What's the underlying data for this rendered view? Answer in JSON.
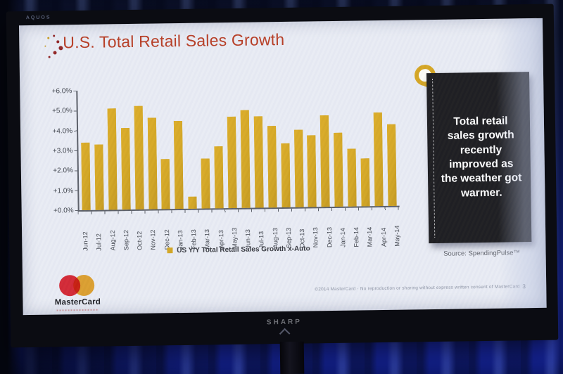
{
  "tv": {
    "top_brand": "AQUOS",
    "bottom_brand": "SHARP"
  },
  "slide": {
    "title": "U.S. Total Retail Sales Growth",
    "callout_text": "Total retail sales growth recently improved as the weather got warmer.",
    "source": "Source: SpendingPulse™",
    "footer_text": "©2014 MasterCard · No reproduction or sharing without express written consent of MasterCard",
    "page_number": "3",
    "logo_text": "MasterCard"
  },
  "chart_data": {
    "type": "bar",
    "title": "U.S. Total Retail Sales Growth",
    "legend": "US Y/Y Total Retail Sales Growth x-Auto",
    "legend_position": "bottom",
    "xlabel": "",
    "ylabel": "",
    "ylim": [
      0,
      6
    ],
    "grid": false,
    "y_ticks_top_down": [
      "+6.0%",
      "+5.0%",
      "+4.0%",
      "+3.0%",
      "+2.0%",
      "+1.0%",
      "+0.0%"
    ],
    "categories": [
      "Jun-12",
      "Jul-12",
      "Aug-12",
      "Sep-12",
      "Oct-12",
      "Nov-12",
      "Dec-12",
      "Jan-13",
      "Feb-13",
      "Mar-13",
      "Apr-13",
      "May-13",
      "Jun-13",
      "Jul-13",
      "Aug-13",
      "Sep-13",
      "Oct-13",
      "Nov-13",
      "Dec-13",
      "Jan-14",
      "Feb-14",
      "Mar-14",
      "Apr-14",
      "May-14"
    ],
    "values": [
      3.4,
      3.3,
      5.1,
      4.1,
      5.2,
      4.6,
      2.5,
      4.4,
      0.6,
      2.5,
      3.1,
      4.6,
      4.9,
      4.6,
      4.1,
      3.2,
      3.9,
      3.6,
      4.6,
      3.7,
      2.9,
      2.4,
      4.7,
      4.1
    ]
  },
  "colors": {
    "bar": "#d2a41e",
    "title": "#b5381f",
    "slide_bg": "#e8ebf3",
    "callout_bg": "#17171a",
    "callout_text": "#ffffff",
    "logo_red": "#d22330",
    "logo_yellow": "#f0a51f"
  }
}
